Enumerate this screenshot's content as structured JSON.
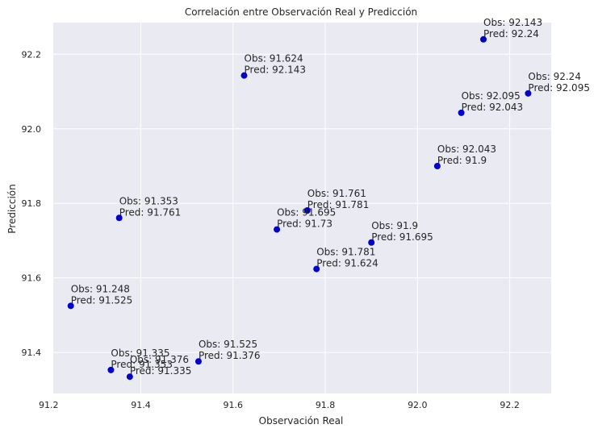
{
  "chart_data": {
    "type": "scatter",
    "title": "Correlación entre Observación Real y Predicción",
    "xlabel": "Observación Real",
    "ylabel": "Predicción",
    "xlim": [
      91.21,
      92.29
    ],
    "ylim": [
      91.29,
      92.285
    ],
    "xticks": [
      "91.2",
      "91.4",
      "91.6",
      "91.8",
      "92.0",
      "92.2"
    ],
    "yticks": [
      "91.4",
      "91.6",
      "91.8",
      "92.0",
      "92.2"
    ],
    "grid": true,
    "point_color": "#0000cc",
    "background_color": "#eaeaf2",
    "points": [
      {
        "x": 91.248,
        "y": 91.525,
        "label": [
          "Obs: 91.248",
          "Pred: 91.525"
        ]
      },
      {
        "x": 91.335,
        "y": 91.353,
        "label": [
          "Obs: 91.335",
          "Pred: 91.353"
        ]
      },
      {
        "x": 91.353,
        "y": 91.761,
        "label": [
          "Obs: 91.353",
          "Pred: 91.761"
        ]
      },
      {
        "x": 91.376,
        "y": 91.335,
        "label": [
          "Obs: 91.376",
          "Pred: 91.335"
        ]
      },
      {
        "x": 91.525,
        "y": 91.376,
        "label": [
          "Obs: 91.525",
          "Pred: 91.376"
        ]
      },
      {
        "x": 91.624,
        "y": 92.143,
        "label": [
          "Obs: 91.624",
          "Pred: 92.143"
        ]
      },
      {
        "x": 91.695,
        "y": 91.73,
        "label": [
          "Obs: 91.695",
          "Pred: 91.73"
        ]
      },
      {
        "x": 91.761,
        "y": 91.781,
        "label": [
          "Obs: 91.761",
          "Pred: 91.781"
        ]
      },
      {
        "x": 91.781,
        "y": 91.624,
        "label": [
          "Obs: 91.781",
          "Pred: 91.624"
        ]
      },
      {
        "x": 91.9,
        "y": 91.695,
        "label": [
          "Obs: 91.9",
          "Pred: 91.695"
        ]
      },
      {
        "x": 92.043,
        "y": 91.9,
        "label": [
          "Obs: 92.043",
          "Pred: 91.9"
        ]
      },
      {
        "x": 92.095,
        "y": 92.043,
        "label": [
          "Obs: 92.095",
          "Pred: 92.043"
        ]
      },
      {
        "x": 92.143,
        "y": 92.24,
        "label": [
          "Obs: 92.143",
          "Pred: 92.24"
        ]
      },
      {
        "x": 92.24,
        "y": 92.095,
        "label": [
          "Obs: 92.24",
          "Pred: 92.095"
        ]
      }
    ]
  }
}
